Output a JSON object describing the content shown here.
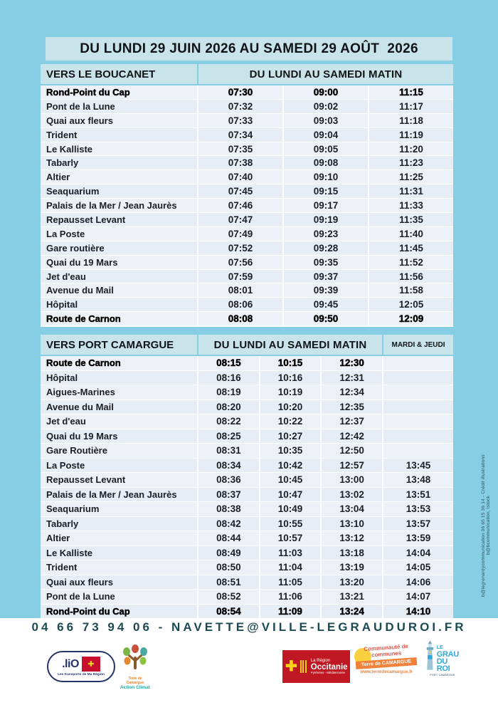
{
  "page": {
    "title": "DU LUNDI 29 JUIN 2026 AU SAMEDI 29 AOÛT  2026",
    "contact": "04 66 73 94 06 - NAVETTE@VILLE-LEGRAUDUROI.FR",
    "credit_vertical": "b@legrenardycommunication 06 65 15 36 14 - Crédit illustrations b@bcommunication, Istock"
  },
  "colors": {
    "background_blue": "#86CEE4",
    "band_blue": "#C8E3EA",
    "row_light": "#ECF1F8",
    "row_alt": "#E6EDF5",
    "contact_teal": "#1C4A52",
    "occitanie_red": "#C01823",
    "camargue_orange": "#F0823C",
    "grau_blue": "#2FA9D8"
  },
  "tables": [
    {
      "direction": "VERS LE BOUCANET",
      "schedule_header": "DU LUNDI AU SAMEDI MATIN",
      "extra_header": null,
      "rows": [
        {
          "stop": "Rond-Point du Cap",
          "times": [
            "07:30",
            "09:00",
            "11:15"
          ],
          "bold": true
        },
        {
          "stop": "Pont de la Lune",
          "times": [
            "07:32",
            "09:02",
            "11:17"
          ],
          "bold": false
        },
        {
          "stop": "Quai aux fleurs",
          "times": [
            "07:33",
            "09:03",
            "11:18"
          ],
          "bold": false
        },
        {
          "stop": "Trident",
          "times": [
            "07:34",
            "09:04",
            "11:19"
          ],
          "bold": false
        },
        {
          "stop": "Le Kalliste",
          "times": [
            "07:35",
            "09:05",
            "11:20"
          ],
          "bold": false
        },
        {
          "stop": "Tabarly",
          "times": [
            "07:38",
            "09:08",
            "11:23"
          ],
          "bold": false
        },
        {
          "stop": "Altier",
          "times": [
            "07:40",
            "09:10",
            "11:25"
          ],
          "bold": false
        },
        {
          "stop": "Seaquarium",
          "times": [
            "07:45",
            "09:15",
            "11:31"
          ],
          "bold": false
        },
        {
          "stop": "Palais de la Mer / Jean Jaurès",
          "times": [
            "07:46",
            "09:17",
            "11:33"
          ],
          "bold": false
        },
        {
          "stop": "Repausset Levant",
          "times": [
            "07:47",
            "09:19",
            "11:35"
          ],
          "bold": false
        },
        {
          "stop": "La Poste",
          "times": [
            "07:49",
            "09:23",
            "11:40"
          ],
          "bold": false
        },
        {
          "stop": "Gare routière",
          "times": [
            "07:52",
            "09:28",
            "11:45"
          ],
          "bold": false
        },
        {
          "stop": "Quai du 19 Mars",
          "times": [
            "07:56",
            "09:35",
            "11:52"
          ],
          "bold": false
        },
        {
          "stop": "Jet d'eau",
          "times": [
            "07:59",
            "09:37",
            "11:56"
          ],
          "bold": false
        },
        {
          "stop": "Avenue du Mail",
          "times": [
            "08:01",
            "09:39",
            "11:58"
          ],
          "bold": false
        },
        {
          "stop": "Hôpital",
          "times": [
            "08:06",
            "09:45",
            "12:05"
          ],
          "bold": false
        },
        {
          "stop": "Route de Carnon",
          "times": [
            "08:08",
            "09:50",
            "12:09"
          ],
          "bold": true
        }
      ]
    },
    {
      "direction": "VERS PORT CAMARGUE",
      "schedule_header": "DU LUNDI AU SAMEDI MATIN",
      "extra_header": "MARDI & JEUDI",
      "rows": [
        {
          "stop": "Route de Carnon",
          "times": [
            "08:15",
            "10:15",
            "12:30",
            ""
          ],
          "bold": true
        },
        {
          "stop": "Hôpital",
          "times": [
            "08:16",
            "10:16",
            "12:31",
            ""
          ],
          "bold": false
        },
        {
          "stop": "Aigues-Marines",
          "times": [
            "08:19",
            "10:19",
            "12:34",
            ""
          ],
          "bold": false
        },
        {
          "stop": "Avenue du Mail",
          "times": [
            "08:20",
            "10:20",
            "12:35",
            ""
          ],
          "bold": false
        },
        {
          "stop": "Jet d'eau",
          "times": [
            "08:22",
            "10:22",
            "12:37",
            ""
          ],
          "bold": false
        },
        {
          "stop": "Quai du 19 Mars",
          "times": [
            "08:25",
            "10:27",
            "12:42",
            ""
          ],
          "bold": false
        },
        {
          "stop": "Gare Routière",
          "times": [
            "08:31",
            "10:35",
            "12:50",
            ""
          ],
          "bold": false
        },
        {
          "stop": "La Poste",
          "times": [
            "08:34",
            "10:42",
            "12:57",
            "13:45"
          ],
          "bold": false
        },
        {
          "stop": "Repausset Levant",
          "times": [
            "08:36",
            "10:45",
            "13:00",
            "13:48"
          ],
          "bold": false
        },
        {
          "stop": "Palais de la Mer / Jean Jaurès",
          "times": [
            "08:37",
            "10:47",
            "13:02",
            "13:51"
          ],
          "bold": false
        },
        {
          "stop": "Seaquarium",
          "times": [
            "08:38",
            "10:49",
            "13:04",
            "13:53"
          ],
          "bold": false
        },
        {
          "stop": "Tabarly",
          "times": [
            "08:42",
            "10:55",
            "13:10",
            "13:57"
          ],
          "bold": false
        },
        {
          "stop": "Altier",
          "times": [
            "08:44",
            "10:57",
            "13:12",
            "13:59"
          ],
          "bold": false
        },
        {
          "stop": "Le Kalliste",
          "times": [
            "08:49",
            "11:03",
            "13:18",
            "14:04"
          ],
          "bold": false
        },
        {
          "stop": "Trident",
          "times": [
            "08:50",
            "11:04",
            "13:19",
            "14:05"
          ],
          "bold": false
        },
        {
          "stop": "Quai aux fleurs",
          "times": [
            "08:51",
            "11:05",
            "13:20",
            "14:06"
          ],
          "bold": false
        },
        {
          "stop": "Pont de la Lune",
          "times": [
            "08:52",
            "11:06",
            "13:21",
            "14:07"
          ],
          "bold": false
        },
        {
          "stop": "Rond-Point du Cap",
          "times": [
            "08:54",
            "11:09",
            "13:24",
            "14:10"
          ],
          "bold": true
        }
      ]
    }
  ],
  "logos": {
    "lio": {
      "word": ".liO",
      "cross": "✚",
      "caption": "Les transports de Ma Région"
    },
    "terre_de_camargue": {
      "line1": "Terre de Camargue",
      "line2": "Action Climat"
    },
    "occitanie": {
      "cross": "✚",
      "line1": "La Région",
      "line2": "Occitanie",
      "line3": "Pyrénées - Méditerranée"
    },
    "communaute": {
      "line1": "Communauté de communes",
      "banner": "Terre de CAMARGUE",
      "url": "www.terredecamargue.fr"
    },
    "grau_du_roi": {
      "le": "LE",
      "grau": "GRAU",
      "duroi": "DU ROI",
      "sub": "PORT CAMARGUE"
    }
  }
}
